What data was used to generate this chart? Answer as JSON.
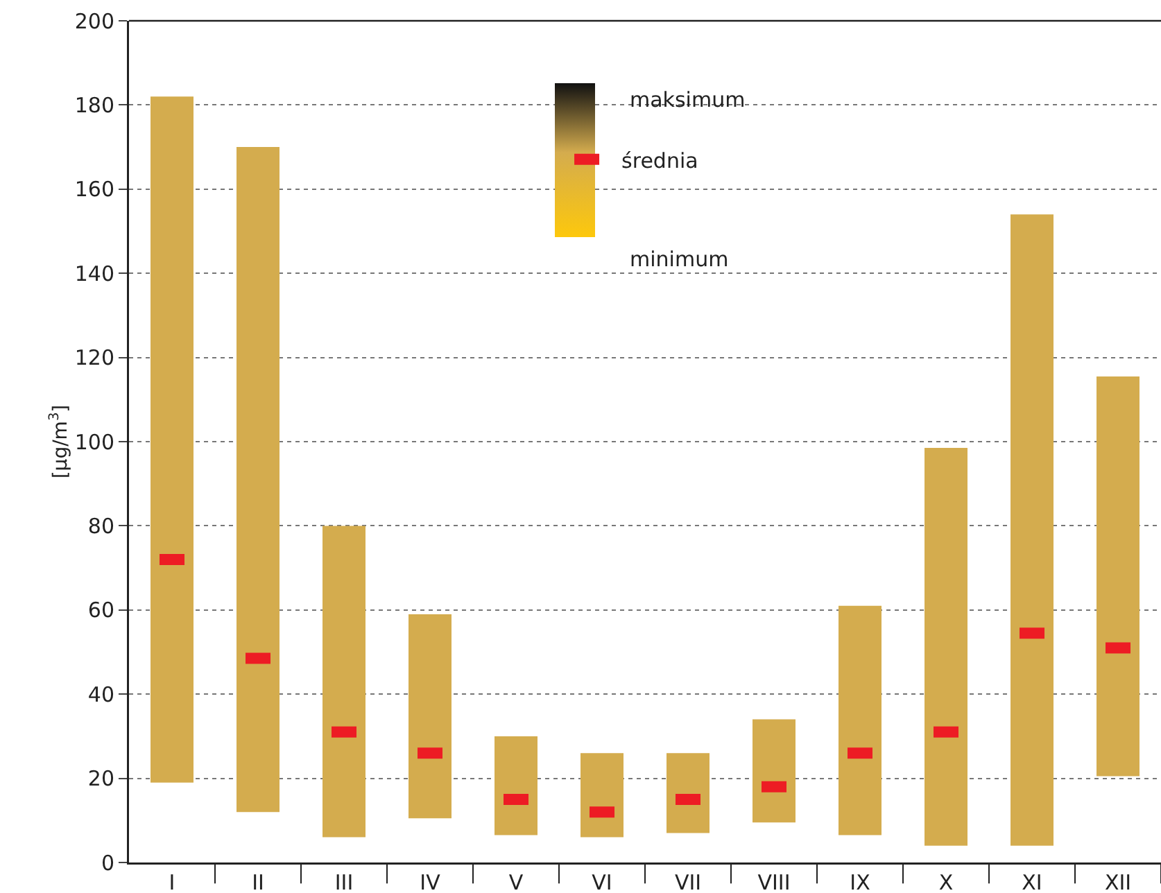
{
  "chart_data": {
    "type": "bar",
    "ylabel": "[µg/m$^{3}$]",
    "categories": [
      "I",
      "II",
      "III",
      "IV",
      "V",
      "VI",
      "VII",
      "VIII",
      "IX",
      "X",
      "XI",
      "XII"
    ],
    "series": [
      {
        "color": "#d4ac4e",
        "base": [
          19,
          12,
          6,
          10.5,
          6.5,
          6,
          7,
          9.5,
          6.5,
          4,
          4,
          20.5
        ],
        "values": [
          163,
          158,
          74,
          48.5,
          23.5,
          20,
          19,
          24.5,
          54.5,
          94.5,
          150,
          95
        ]
      },
      {
        "type": "scatter",
        "name": "średnia",
        "color": "#ed1c24",
        "values": [
          72,
          48.5,
          31,
          26,
          15,
          12,
          15,
          18,
          26,
          31,
          54.5,
          51
        ]
      }
    ],
    "annotations": [
      "maksimum",
      "minimum"
    ],
    "ylim": [
      0,
      200
    ],
    "yticks": [
      0,
      20,
      40,
      60,
      80,
      100,
      120,
      140,
      160,
      180,
      200
    ],
    "grid": "y",
    "legend": "top"
  }
}
